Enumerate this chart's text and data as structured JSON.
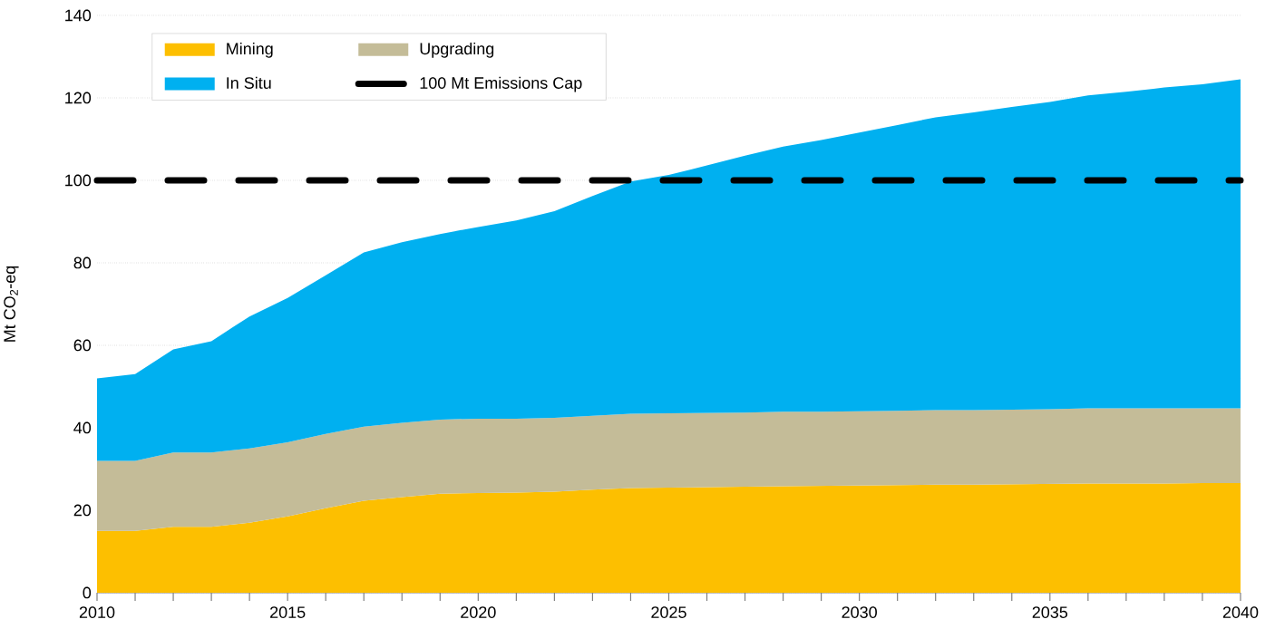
{
  "chart_data": {
    "type": "area",
    "stacked": true,
    "ylabel": "Mt CO$_{2}$-eq",
    "x": [
      2010,
      2011,
      2012,
      2013,
      2014,
      2015,
      2016,
      2017,
      2018,
      2019,
      2020,
      2021,
      2022,
      2023,
      2024,
      2025,
      2026,
      2027,
      2028,
      2029,
      2030,
      2031,
      2032,
      2033,
      2034,
      2035,
      2036,
      2037,
      2038,
      2039,
      2040
    ],
    "series": [
      {
        "name": "Mining",
        "color": "#fdbf00",
        "values": [
          15,
          15,
          16,
          16,
          17,
          18.5,
          20.5,
          22.3,
          23.2,
          24,
          24.2,
          24.3,
          24.5,
          25,
          25.4,
          25.5,
          25.6,
          25.7,
          25.8,
          25.9,
          26,
          26.1,
          26.2,
          26.2,
          26.3,
          26.4,
          26.5,
          26.5,
          26.5,
          26.6,
          26.6
        ]
      },
      {
        "name": "Upgrading",
        "color": "#c4bc98",
        "values": [
          17,
          17,
          18,
          18,
          18,
          18,
          18,
          18,
          18,
          18,
          18,
          17.9,
          17.9,
          17.9,
          18,
          18,
          18,
          18,
          18.1,
          18,
          18,
          18,
          18.1,
          18.1,
          18.1,
          18.1,
          18.2,
          18.2,
          18.2,
          18.1,
          18.1
        ]
      },
      {
        "name": "In Situ",
        "color": "#00b0f0",
        "values": [
          20,
          21,
          25,
          27,
          32,
          35,
          38.5,
          42.2,
          43.8,
          45,
          46.5,
          48.1,
          50.1,
          53.3,
          56.3,
          57.8,
          60,
          62.3,
          64.3,
          65.9,
          67.6,
          69.3,
          71,
          72.2,
          73.4,
          74.5,
          75.9,
          76.8,
          77.8,
          78.6,
          79.8
        ]
      }
    ],
    "ref_lines": [
      {
        "axis": "y",
        "value": 100,
        "label": "100 Mt Emissions Cap",
        "color": "#000000",
        "line_style": "dashed"
      }
    ],
    "xlim": [
      2010,
      2040
    ],
    "xticks": [
      2010,
      {
        "value": 2011,
        "label": null
      },
      {
        "value": 2012,
        "label": null
      },
      {
        "value": 2013,
        "label": null
      },
      {
        "value": 2014,
        "label": null
      },
      2015,
      {
        "value": 2016,
        "label": null
      },
      {
        "value": 2017,
        "label": null
      },
      {
        "value": 2018,
        "label": null
      },
      {
        "value": 2019,
        "label": null
      },
      2020,
      {
        "value": 2021,
        "label": null
      },
      {
        "value": 2022,
        "label": null
      },
      {
        "value": 2023,
        "label": null
      },
      {
        "value": 2024,
        "label": null
      },
      2025,
      {
        "value": 2026,
        "label": null
      },
      {
        "value": 2027,
        "label": null
      },
      {
        "value": 2028,
        "label": null
      },
      {
        "value": 2029,
        "label": null
      },
      2030,
      {
        "value": 2031,
        "label": null
      },
      {
        "value": 2032,
        "label": null
      },
      {
        "value": 2033,
        "label": null
      },
      {
        "value": 2034,
        "label": null
      },
      2035,
      {
        "value": 2036,
        "label": null
      },
      {
        "value": 2037,
        "label": null
      },
      {
        "value": 2038,
        "label": null
      },
      {
        "value": 2039,
        "label": null
      },
      2040
    ],
    "ylim": [
      0,
      140
    ],
    "yticks": [
      0,
      20,
      40,
      60,
      80,
      100,
      120,
      140
    ],
    "grid": "y",
    "legend": "top left"
  }
}
